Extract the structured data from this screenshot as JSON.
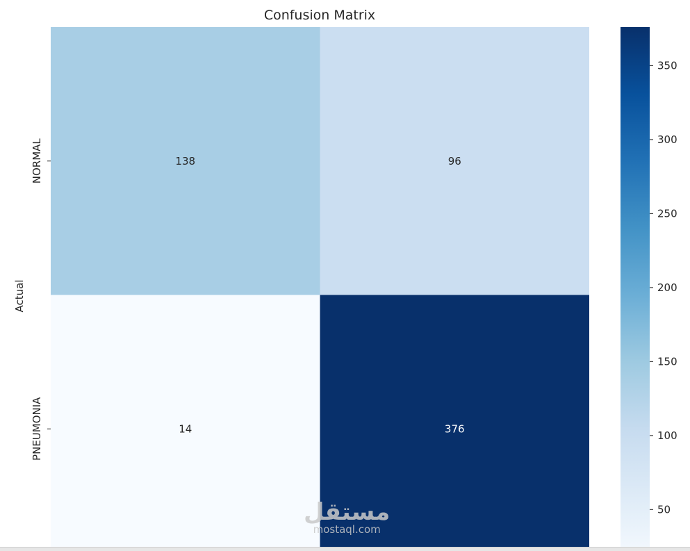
{
  "chart_data": {
    "type": "heatmap",
    "title": "Confusion Matrix",
    "ylabel": "Actual",
    "xlabel": "",
    "row_labels": [
      "NORMAL",
      "PNEUMONIA"
    ],
    "col_labels": [],
    "values": [
      [
        138,
        96
      ],
      [
        14,
        376
      ]
    ],
    "colormap": "Blues",
    "colorbar": {
      "range": [
        14,
        376
      ],
      "ticks": [
        50,
        100,
        150,
        200,
        250,
        300,
        350
      ]
    }
  },
  "watermark": {
    "arabic": "مستقل",
    "latin": "mostaql.com"
  }
}
